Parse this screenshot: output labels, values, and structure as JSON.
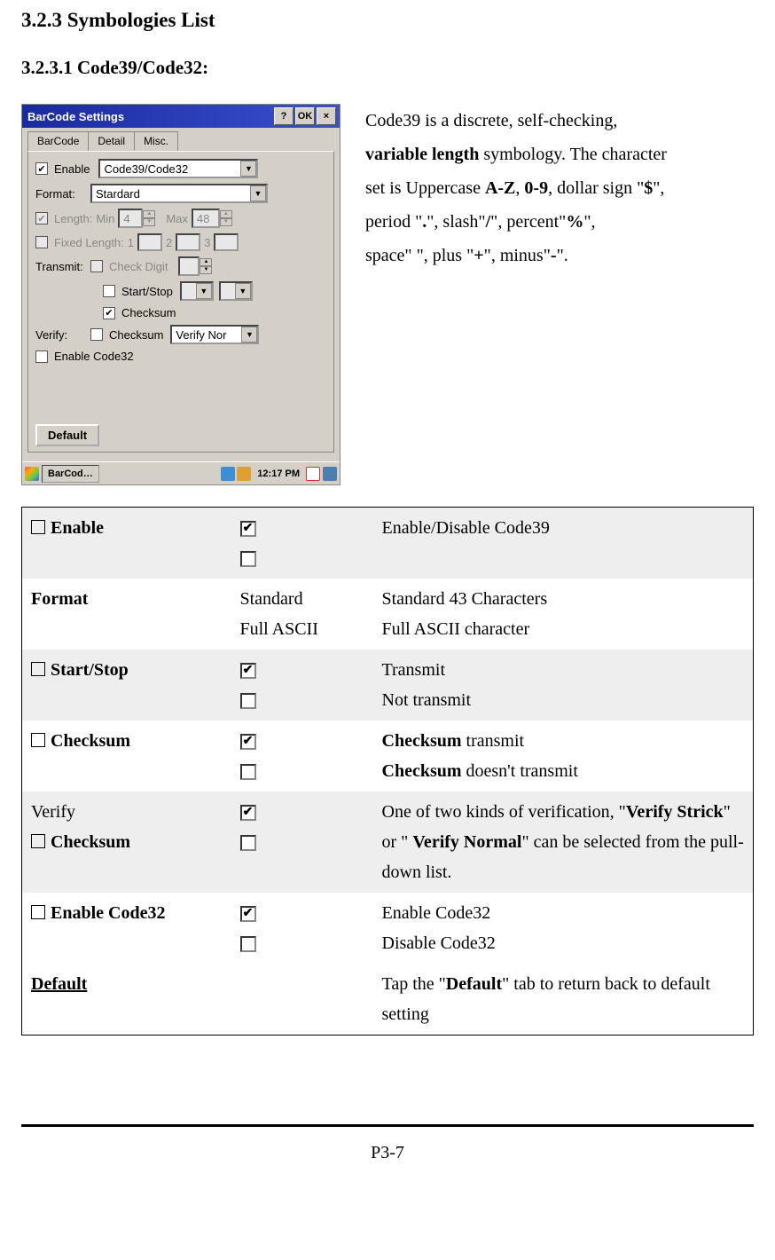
{
  "headings": {
    "h1": "3.2.3  Symbologies List",
    "h2": "3.2.3.1      Code39/Code32:"
  },
  "screenshot": {
    "title": "BarCode Settings",
    "btn_help": "?",
    "btn_ok": "OK",
    "btn_close": "×",
    "tabs": {
      "t1": "BarCode",
      "t2": "Detail",
      "t3": "Misc."
    },
    "enable_label": "Enable",
    "symb_value": "Code39/Code32",
    "format_label": "Format:",
    "format_value": "Stardard",
    "length_label": "Length:",
    "min_label": "Min",
    "min_value": "4",
    "max_label": "Max",
    "max_value": "48",
    "fixed_label": "Fixed Length:",
    "fl1": "1",
    "fl2": "2",
    "fl3": "3",
    "transmit_label": "Transmit:",
    "check_digit": "Check Digit",
    "start_stop": "Start/Stop",
    "checksum": "Checksum",
    "verify_label": "Verify:",
    "verify_value": "Verify Nor",
    "enable_code32": "Enable Code32",
    "default_btn": "Default",
    "taskbar_app": "BarCod…",
    "taskbar_time": "12:17 PM"
  },
  "desc": {
    "l1_a": "Code39 is a discrete, self-checking,",
    "l2_a": "variable length",
    "l2_b": " symbology. The character",
    "l3_a": "set is Uppercase ",
    "l3_b": "A-Z",
    "l3_c": ", ",
    "l3_d": "0-9",
    "l3_e": ", dollar sign \"",
    "l3_f": "$",
    "l3_g": "\",",
    "l4_a": "period \"",
    "l4_b": ".",
    "l4_c": "\",   slash\"",
    "l4_d": "/",
    "l4_e": "\",   percent\"",
    "l4_f": "%",
    "l4_g": "\",",
    "l5_a": "space\" \", plus \"",
    "l5_b": "+",
    "l5_c": "\",   minus\"",
    "l5_d": "-",
    "l5_e": "\"."
  },
  "table": {
    "rows": [
      {
        "shaded": true,
        "c1_prefix_box": true,
        "c1_bold": "Enable",
        "c2": [
          "checked",
          "unchecked"
        ],
        "c3": "Enable/Disable Code39"
      },
      {
        "shaded": false,
        "c1_bold": "Format",
        "c2_text": [
          "Standard",
          "Full ASCII"
        ],
        "c3_lines": [
          "Standard 43 Characters",
          "Full ASCII character"
        ]
      },
      {
        "shaded": true,
        "c1_prefix_box": true,
        "c1_bold": "Start/Stop",
        "c2": [
          "checked",
          "unchecked"
        ],
        "c3_lines": [
          "Transmit",
          "Not transmit"
        ]
      },
      {
        "shaded": false,
        "c1_prefix_box": true,
        "c1_bold": "Checksum",
        "c2": [
          "checked",
          "unchecked"
        ],
        "c3_html": "<b>Checksum</b> transmit<br><b>Checksum</b> doesn't transmit"
      },
      {
        "shaded": true,
        "c1_plain": "Verify",
        "c1_prefix_box_line2": true,
        "c1_bold_line2": "Checksum",
        "c2": [
          "checked",
          "unchecked"
        ],
        "c3_html": "One of two kinds of verification, \"<b>Verify Strick</b>\" or \" <b>Verify Normal</b>\" can be selected from the pull-down list."
      },
      {
        "shaded": false,
        "c1_prefix_box": true,
        "c1_bold": "Enable Code32",
        "c2": [
          "checked",
          "unchecked"
        ],
        "c3_lines": [
          "Enable Code32",
          "Disable Code32"
        ]
      },
      {
        "shaded": false,
        "c1_underline_bold": "Default",
        "c3_html": "Tap the \"<b>Default</b>\" tab to return back to default setting"
      }
    ]
  },
  "footer": "P3-7",
  "colors": {
    "titlebar": "#2a3fbf",
    "panel": "#d4d0c8",
    "shade": "#eeeeee"
  }
}
